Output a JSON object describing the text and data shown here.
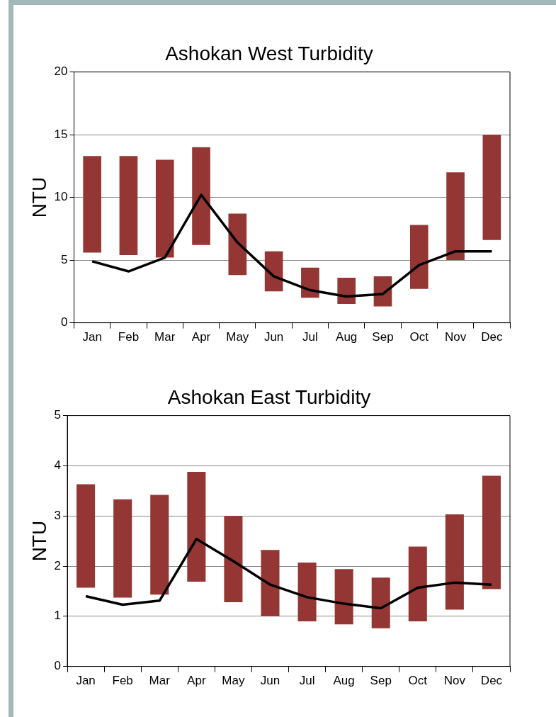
{
  "chart_data": [
    {
      "type": "bar",
      "title": "Ashokan West Turbidity",
      "ylabel": "NTU",
      "categories": [
        "Jan",
        "Feb",
        "Mar",
        "Apr",
        "May",
        "Jun",
        "Jul",
        "Aug",
        "Sep",
        "Oct",
        "Nov",
        "Dec"
      ],
      "ylim": [
        0,
        20
      ],
      "yticks": [
        0,
        5,
        10,
        15,
        20
      ],
      "grid": "y",
      "legend": false,
      "series": [
        {
          "type": "bar",
          "color": "#943634",
          "base": [
            5.6,
            5.4,
            5.2,
            6.2,
            3.8,
            2.5,
            2.0,
            1.5,
            1.3,
            2.7,
            5.0,
            6.6
          ],
          "values": [
            7.7,
            7.9,
            7.8,
            7.8,
            4.9,
            3.2,
            2.4,
            2.1,
            2.4,
            5.1,
            7.0,
            8.4
          ]
        },
        {
          "type": "line",
          "color": "#000000",
          "marker": "none",
          "values": [
            4.9,
            4.1,
            5.2,
            10.2,
            6.4,
            3.7,
            2.6,
            2.1,
            2.3,
            4.6,
            5.7,
            5.7
          ]
        }
      ]
    },
    {
      "type": "bar",
      "title": "Ashokan East Turbidity",
      "ylabel": "NTU",
      "categories": [
        "Jan",
        "Feb",
        "Mar",
        "Apr",
        "May",
        "Jun",
        "Jul",
        "Aug",
        "Sep",
        "Oct",
        "Nov",
        "Dec"
      ],
      "ylim": [
        0,
        5
      ],
      "yticks": [
        0,
        1,
        2,
        3,
        4,
        5
      ],
      "grid": "y",
      "legend": false,
      "series": [
        {
          "type": "bar",
          "color": "#943634",
          "base": [
            1.57,
            1.37,
            1.43,
            1.69,
            1.28,
            1.0,
            0.9,
            0.84,
            0.76,
            0.9,
            1.13,
            1.54
          ],
          "values": [
            2.06,
            1.96,
            1.99,
            2.19,
            1.72,
            1.32,
            1.17,
            1.1,
            1.01,
            1.49,
            1.9,
            2.26
          ]
        },
        {
          "type": "line",
          "color": "#000000",
          "marker": "none",
          "values": [
            1.4,
            1.23,
            1.31,
            2.54,
            2.1,
            1.63,
            1.38,
            1.25,
            1.16,
            1.57,
            1.67,
            1.63
          ]
        }
      ]
    }
  ]
}
